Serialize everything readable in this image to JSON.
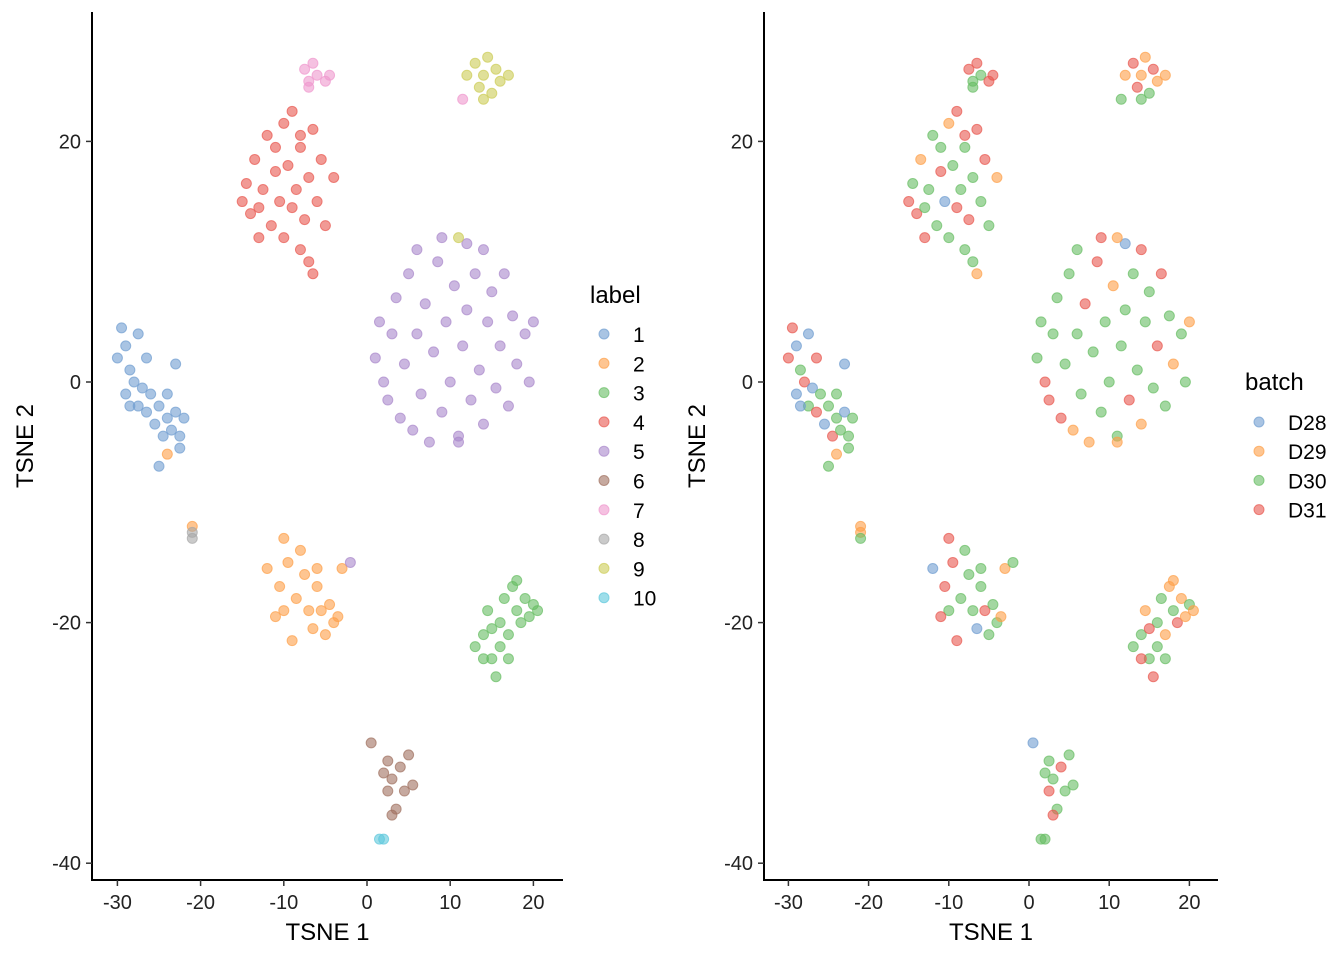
{
  "chart_data": [
    {
      "type": "scatter",
      "xlabel": "TSNE 1",
      "ylabel": "TSNE 2",
      "xlim": [
        -33,
        23.6
      ],
      "ylim": [
        -41.4,
        30.8
      ],
      "xticks": [
        -30,
        -20,
        -10,
        0,
        10,
        20
      ],
      "yticks": [
        20,
        0,
        -20,
        -40
      ],
      "grid": false,
      "color_by": "label",
      "legend": {
        "title": "label",
        "position": "right",
        "entries": [
          "1",
          "2",
          "3",
          "4",
          "5",
          "6",
          "7",
          "8",
          "9",
          "10"
        ]
      },
      "colors": [
        "#6f9dd0",
        "#fd9f48",
        "#66bd63",
        "#e8574f",
        "#a987cb",
        "#a0705f",
        "#ef97cd",
        "#a6a6a6",
        "#cccc55",
        "#5ec8dc"
      ]
    },
    {
      "type": "scatter",
      "xlabel": "TSNE 1",
      "ylabel": "TSNE 2",
      "xlim": [
        -33,
        23.6
      ],
      "ylim": [
        -41.4,
        30.8
      ],
      "xticks": [
        -30,
        -20,
        -10,
        0,
        10,
        20
      ],
      "yticks": [
        20,
        0,
        -20,
        -40
      ],
      "grid": false,
      "color_by": "batch",
      "legend": {
        "title": "batch",
        "position": "right",
        "entries": [
          "D28",
          "D29",
          "D30",
          "D31"
        ]
      },
      "colors": [
        "#6f9dd0",
        "#fd9f48",
        "#66bd63",
        "#e8574f"
      ]
    }
  ],
  "points_format": [
    "tsne1",
    "tsne2",
    "label",
    "batch"
  ],
  "points": [
    [
      -30,
      2,
      1,
      "D31"
    ],
    [
      -29.5,
      4.5,
      1,
      "D31"
    ],
    [
      -29,
      3,
      1,
      "D28"
    ],
    [
      -28.5,
      1,
      1,
      "D30"
    ],
    [
      -29,
      -1,
      1,
      "D28"
    ],
    [
      -28,
      0,
      1,
      "D31"
    ],
    [
      -27.5,
      -2,
      1,
      "D30"
    ],
    [
      -27,
      -0.5,
      1,
      "D28"
    ],
    [
      -26.5,
      -2.5,
      1,
      "D31"
    ],
    [
      -26,
      -1,
      1,
      "D30"
    ],
    [
      -25.5,
      -3.5,
      1,
      "D28"
    ],
    [
      -25,
      -2,
      1,
      "D30"
    ],
    [
      -24.5,
      -4.5,
      1,
      "D31"
    ],
    [
      -24,
      -3,
      1,
      "D30"
    ],
    [
      -23.5,
      -4,
      1,
      "D30"
    ],
    [
      -23,
      -2.5,
      1,
      "D28"
    ],
    [
      -22.5,
      -4.5,
      1,
      "D30"
    ],
    [
      -22,
      -3,
      1,
      "D30"
    ],
    [
      -23,
      1.5,
      1,
      "D28"
    ],
    [
      -25,
      -7,
      1,
      "D30"
    ],
    [
      -26.5,
      2,
      1,
      "D31"
    ],
    [
      -27.5,
      4,
      1,
      "D28"
    ],
    [
      -28.5,
      -2,
      1,
      "D28"
    ],
    [
      -24,
      -1,
      1,
      "D30"
    ],
    [
      -22.5,
      -5.5,
      1,
      "D30"
    ],
    [
      -12,
      -15.5,
      2,
      "D28"
    ],
    [
      -10,
      -13,
      2,
      "D31"
    ],
    [
      -9.5,
      -15,
      2,
      "D31"
    ],
    [
      -10.5,
      -17,
      2,
      "D31"
    ],
    [
      -10,
      -19,
      2,
      "D30"
    ],
    [
      -9,
      -21.5,
      2,
      "D31"
    ],
    [
      -8.5,
      -18,
      2,
      "D30"
    ],
    [
      -7.5,
      -16,
      2,
      "D30"
    ],
    [
      -7,
      -19,
      2,
      "D30"
    ],
    [
      -6.5,
      -20.5,
      2,
      "D28"
    ],
    [
      -6,
      -17,
      2,
      "D30"
    ],
    [
      -5.5,
      -19,
      2,
      "D31"
    ],
    [
      -5,
      -21,
      2,
      "D30"
    ],
    [
      -4.5,
      -18.5,
      2,
      "D30"
    ],
    [
      -4,
      -20,
      2,
      "D30"
    ],
    [
      -8,
      -14,
      2,
      "D30"
    ],
    [
      -11,
      -19.5,
      2,
      "D31"
    ],
    [
      -6,
      -15.5,
      2,
      "D30"
    ],
    [
      -3.5,
      -19.5,
      2,
      "D29"
    ],
    [
      -24,
      -6,
      2,
      "D29"
    ],
    [
      -3,
      -15.5,
      2,
      "D29"
    ],
    [
      -21,
      -12,
      2,
      "D29"
    ],
    [
      13,
      -22,
      3,
      "D30"
    ],
    [
      14,
      -21,
      3,
      "D30"
    ],
    [
      14.5,
      -19,
      3,
      "D29"
    ],
    [
      15,
      -23,
      3,
      "D30"
    ],
    [
      15.5,
      -24.5,
      3,
      "D31"
    ],
    [
      16,
      -20,
      3,
      "D30"
    ],
    [
      16.5,
      -18,
      3,
      "D30"
    ],
    [
      17,
      -21,
      3,
      "D29"
    ],
    [
      17.5,
      -17,
      3,
      "D29"
    ],
    [
      18,
      -19,
      3,
      "D30"
    ],
    [
      18.5,
      -20,
      3,
      "D31"
    ],
    [
      19,
      -18,
      3,
      "D29"
    ],
    [
      19.5,
      -19.5,
      3,
      "D29"
    ],
    [
      20,
      -18.5,
      3,
      "D30"
    ],
    [
      20.5,
      -19,
      3,
      "D29"
    ],
    [
      16,
      -22,
      3,
      "D30"
    ],
    [
      17,
      -23,
      3,
      "D30"
    ],
    [
      18,
      -16.5,
      3,
      "D29"
    ],
    [
      15,
      -20.5,
      3,
      "D31"
    ],
    [
      14,
      -23,
      3,
      "D31"
    ],
    [
      -15,
      15,
      4,
      "D31"
    ],
    [
      -14.5,
      16.5,
      4,
      "D30"
    ],
    [
      -14,
      14,
      4,
      "D31"
    ],
    [
      -13.5,
      18.5,
      4,
      "D29"
    ],
    [
      -13,
      12,
      4,
      "D31"
    ],
    [
      -12.5,
      16,
      4,
      "D30"
    ],
    [
      -12,
      20.5,
      4,
      "D30"
    ],
    [
      -11.5,
      13,
      4,
      "D30"
    ],
    [
      -11,
      17.5,
      4,
      "D31"
    ],
    [
      -10.5,
      15,
      4,
      "D28"
    ],
    [
      -10,
      21.5,
      4,
      "D29"
    ],
    [
      -10,
      12,
      4,
      "D30"
    ],
    [
      -9.5,
      18,
      4,
      "D30"
    ],
    [
      -9,
      14.5,
      4,
      "D31"
    ],
    [
      -9,
      22.5,
      4,
      "D31"
    ],
    [
      -8.5,
      16,
      4,
      "D30"
    ],
    [
      -8,
      19.5,
      4,
      "D30"
    ],
    [
      -7.5,
      13.5,
      4,
      "D31"
    ],
    [
      -7,
      17,
      4,
      "D30"
    ],
    [
      -6.5,
      21,
      4,
      "D31"
    ],
    [
      -6,
      15,
      4,
      "D30"
    ],
    [
      -5.5,
      18.5,
      4,
      "D31"
    ],
    [
      -5,
      13,
      4,
      "D30"
    ],
    [
      -4,
      17,
      4,
      "D29"
    ],
    [
      -8,
      11,
      4,
      "D30"
    ],
    [
      -7,
      10,
      4,
      "D30"
    ],
    [
      -6.5,
      9,
      4,
      "D29"
    ],
    [
      -8,
      20.5,
      4,
      "D31"
    ],
    [
      -11,
      19.5,
      4,
      "D30"
    ],
    [
      -13,
      14.5,
      4,
      "D30"
    ],
    [
      1.5,
      5,
      5,
      "D30"
    ],
    [
      1,
      2,
      5,
      "D30"
    ],
    [
      2,
      0,
      5,
      "D31"
    ],
    [
      3,
      4,
      5,
      "D30"
    ],
    [
      2.5,
      -1.5,
      5,
      "D31"
    ],
    [
      3.5,
      7,
      5,
      "D30"
    ],
    [
      4,
      -3,
      5,
      "D31"
    ],
    [
      4.5,
      1.5,
      5,
      "D30"
    ],
    [
      5,
      9,
      5,
      "D30"
    ],
    [
      5.5,
      -4,
      5,
      "D29"
    ],
    [
      6,
      4,
      5,
      "D30"
    ],
    [
      6.5,
      -1,
      5,
      "D30"
    ],
    [
      7,
      6.5,
      5,
      "D31"
    ],
    [
      7.5,
      -5,
      5,
      "D29"
    ],
    [
      8,
      2.5,
      5,
      "D30"
    ],
    [
      8.5,
      10,
      5,
      "D31"
    ],
    [
      9,
      -2.5,
      5,
      "D30"
    ],
    [
      9.5,
      5,
      5,
      "D30"
    ],
    [
      10,
      0,
      5,
      "D30"
    ],
    [
      10.5,
      8,
      5,
      "D29"
    ],
    [
      11,
      -4.5,
      5,
      "D30"
    ],
    [
      11.5,
      3,
      5,
      "D30"
    ],
    [
      12,
      11.5,
      5,
      "D28"
    ],
    [
      12,
      6,
      5,
      "D30"
    ],
    [
      12.5,
      -1.5,
      5,
      "D31"
    ],
    [
      13,
      9,
      5,
      "D30"
    ],
    [
      13.5,
      1,
      5,
      "D30"
    ],
    [
      14,
      -3.5,
      5,
      "D29"
    ],
    [
      14.5,
      5,
      5,
      "D30"
    ],
    [
      15,
      7.5,
      5,
      "D30"
    ],
    [
      15.5,
      -0.5,
      5,
      "D30"
    ],
    [
      16,
      3,
      5,
      "D31"
    ],
    [
      16.5,
      9,
      5,
      "D31"
    ],
    [
      17,
      -2,
      5,
      "D30"
    ],
    [
      17.5,
      5.5,
      5,
      "D30"
    ],
    [
      18,
      1.5,
      5,
      "D29"
    ],
    [
      19,
      4,
      5,
      "D30"
    ],
    [
      20,
      5,
      5,
      "D29"
    ],
    [
      19.5,
      0,
      5,
      "D30"
    ],
    [
      14,
      11,
      5,
      "D31"
    ],
    [
      9,
      12,
      5,
      "D31"
    ],
    [
      6,
      11,
      5,
      "D30"
    ],
    [
      11,
      -5,
      5,
      "D29"
    ],
    [
      -2,
      -15,
      5,
      "D30"
    ],
    [
      0.5,
      -30,
      6,
      "D28"
    ],
    [
      2,
      -32.5,
      6,
      "D30"
    ],
    [
      2.5,
      -34,
      6,
      "D31"
    ],
    [
      3,
      -33,
      6,
      "D30"
    ],
    [
      3.5,
      -35.5,
      6,
      "D30"
    ],
    [
      4,
      -32,
      6,
      "D31"
    ],
    [
      4.5,
      -34,
      6,
      "D30"
    ],
    [
      5,
      -31,
      6,
      "D30"
    ],
    [
      5.5,
      -33.5,
      6,
      "D30"
    ],
    [
      3,
      -36,
      6,
      "D31"
    ],
    [
      2.5,
      -31.5,
      6,
      "D30"
    ],
    [
      -7.5,
      26,
      7,
      "D31"
    ],
    [
      -7,
      25,
      7,
      "D30"
    ],
    [
      -6.5,
      26.5,
      7,
      "D31"
    ],
    [
      -6,
      25.5,
      7,
      "D30"
    ],
    [
      -5,
      25,
      7,
      "D31"
    ],
    [
      -7,
      24.5,
      7,
      "D30"
    ],
    [
      -4.5,
      25.5,
      7,
      "D31"
    ],
    [
      11.5,
      23.5,
      7,
      "D30"
    ],
    [
      -21,
      -12.5,
      8,
      "D29"
    ],
    [
      -21,
      -13,
      8,
      "D30"
    ],
    [
      12,
      25.5,
      9,
      "D29"
    ],
    [
      13,
      26.5,
      9,
      "D31"
    ],
    [
      13.5,
      24.5,
      9,
      "D31"
    ],
    [
      14,
      25.5,
      9,
      "D29"
    ],
    [
      14.5,
      27,
      9,
      "D29"
    ],
    [
      15,
      24,
      9,
      "D30"
    ],
    [
      15.5,
      26,
      9,
      "D31"
    ],
    [
      16,
      25,
      9,
      "D29"
    ],
    [
      17,
      25.5,
      9,
      "D29"
    ],
    [
      14,
      23.5,
      9,
      "D30"
    ],
    [
      11,
      12,
      9,
      "D29"
    ],
    [
      1.5,
      -38,
      10,
      "D30"
    ],
    [
      2,
      -38,
      10,
      "D30"
    ]
  ]
}
